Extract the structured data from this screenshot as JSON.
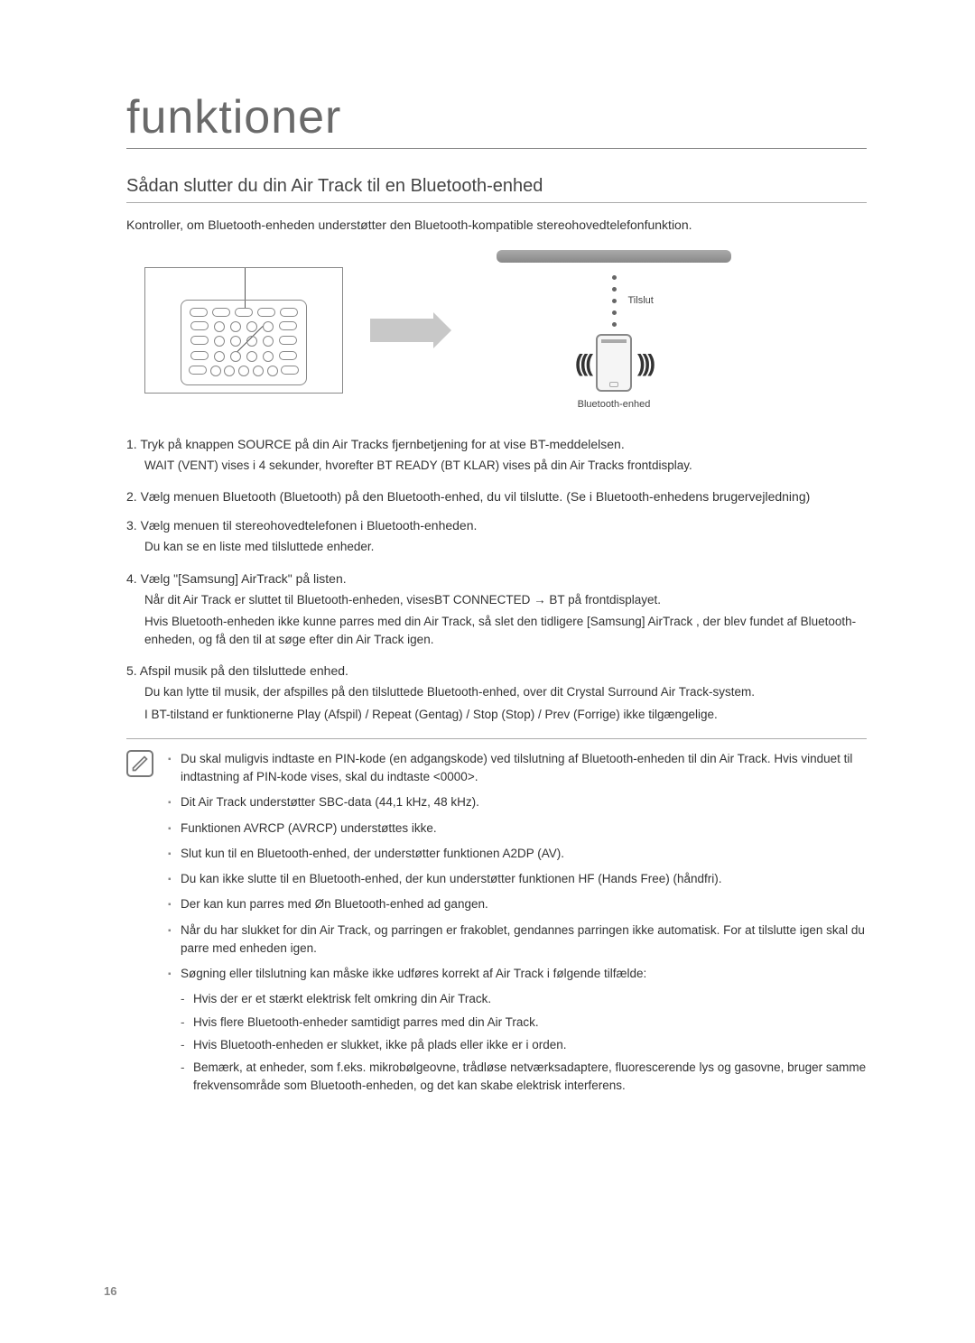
{
  "chapter_title": "funktioner",
  "section_title": "Sådan slutter du din Air Track til en Bluetooth-enhed",
  "intro": "Kontroller, om Bluetooth-enheden understøtter den Bluetooth-kompatible stereohovedtelefonfunktion.",
  "diagram": {
    "tilslut_label": "Tilslut",
    "bt_device_label": "Bluetooth-enhed"
  },
  "steps": [
    {
      "num": "1.",
      "head": "Tryk på knappen SOURCE på din Air Tracks fjernbetjening for at vise BT-meddelelsen.",
      "subs": [
        "WAIT (VENT) vises i 4 sekunder, hvorefter BT READY (BT KLAR) vises på din Air Tracks frontdisplay."
      ]
    },
    {
      "num": "2.",
      "head": "Vælg menuen Bluetooth (Bluetooth) på den Bluetooth-enhed, du vil tilslutte. (Se i Bluetooth-enhedens brugervejledning)",
      "subs": []
    },
    {
      "num": "3.",
      "head": "Vælg menuen til stereohovedtelefonen i Bluetooth-enheden.",
      "subs": [
        "Du kan se en liste med tilsluttede enheder."
      ]
    },
    {
      "num": "4.",
      "head": "Vælg \"[Samsung] AirTrack\" på listen.",
      "subs": [
        "Når dit Air Track er sluttet til Bluetooth-enheden, visesBT CONNECTED → BT på frontdisplayet.",
        "Hvis Bluetooth-enheden ikke kunne parres med din Air Track, så slet den tidligere [Samsung] AirTrack , der blev fundet af Bluetooth-enheden, og få den til at søge efter din Air Track igen."
      ]
    },
    {
      "num": "5.",
      "head": "Afspil musik på den tilsluttede enhed.",
      "subs": [
        "Du kan lytte til musik, der afspilles på den tilsluttede Bluetooth-enhed, over dit Crystal Surround Air Track-system.",
        "I BT-tilstand er funktionerne Play (Afspil) / Repeat (Gentag) / Stop (Stop) / Prev (Forrige) ikke tilgængelige."
      ]
    }
  ],
  "notes": [
    "Du skal muligvis indtaste en PIN-kode (en adgangskode) ved tilslutning af Bluetooth-enheden til din Air Track. Hvis vinduet til indtastning af PIN-kode vises, skal du indtaste <0000>.",
    "Dit Air Track understøtter SBC-data (44,1 kHz, 48 kHz).",
    "Funktionen AVRCP (AVRCP) understøttes ikke.",
    "Slut kun til en Bluetooth-enhed, der understøtter funktionen A2DP (AV).",
    "Du kan ikke slutte til en Bluetooth-enhed, der kun understøtter funktionen HF (Hands Free) (håndfri).",
    "Der kan kun parres med Øn Bluetooth-enhed ad gangen.",
    "Når du har slukket for din Air Track, og parringen er frakoblet, gendannes parringen ikke automatisk. For at tilslutte igen skal du parre med enheden igen.",
    "Søgning eller tilslutning kan måske ikke udføres korrekt af Air Track i følgende tilfælde:"
  ],
  "sub_notes": [
    "Hvis der er et stærkt elektrisk felt omkring din Air Track.",
    "Hvis flere Bluetooth-enheder samtidigt parres med din Air Track.",
    "Hvis Bluetooth-enheden er slukket, ikke på plads eller ikke er i orden.",
    "Bemærk, at enheder, som f.eks. mikrobølgeovne, trådløse netværksadaptere, fluorescerende lys og gasovne, bruger samme frekvensområde som Bluetooth-enheden, og det kan skabe elektrisk interferens."
  ],
  "page_number": "16",
  "colors": {
    "text": "#333333",
    "muted": "#888888",
    "border": "#aaaaaa",
    "arrow": "#c8c8c8"
  }
}
